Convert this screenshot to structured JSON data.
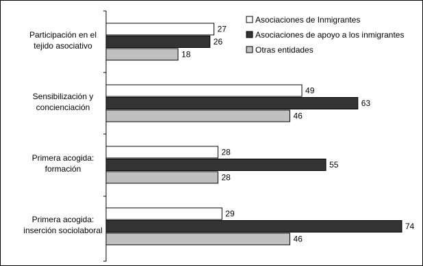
{
  "chart_data": {
    "type": "bar",
    "orientation": "horizontal",
    "categories": [
      [
        "Participación en el",
        "tejido asociativo"
      ],
      [
        "Sensibilización y",
        "concienciación"
      ],
      [
        "Primera acogida:",
        "formación"
      ],
      [
        "Primera acogida:",
        "inserción sociolaboral"
      ]
    ],
    "series": [
      {
        "name": "Asociaciones de Inmigrantes",
        "color": "#ffffff",
        "values": [
          27,
          49,
          28,
          29
        ]
      },
      {
        "name": "Asociaciones de apoyo a los inmigrantes",
        "color": "#333333",
        "values": [
          26,
          63,
          55,
          74
        ]
      },
      {
        "name": "Otras entidades",
        "color": "#c0c0c0",
        "values": [
          18,
          46,
          28,
          46
        ]
      }
    ],
    "xlim": [
      0,
      80
    ],
    "grid": false,
    "legend_position": "top-right",
    "data_labels": true
  }
}
